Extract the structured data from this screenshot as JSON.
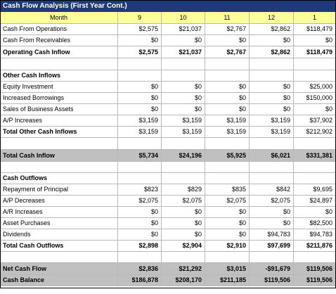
{
  "title": "Cash Flow Analysis (First Year Cont.)",
  "header": [
    "Month",
    "9",
    "10",
    "11",
    "12",
    "1"
  ],
  "rows": [
    [
      "Cash From Operations",
      "$2,575",
      "$21,037",
      "$2,767",
      "$2,862",
      "$118,479"
    ],
    [
      "Cash From Receivables",
      "$0",
      "$0",
      "$0",
      "$0",
      "$0"
    ],
    [
      "Operating Cash Inflow",
      "$2,575",
      "$21,037",
      "$2,767",
      "$2,862",
      "$118,479"
    ],
    [
      "Other Cash Inflows"
    ],
    [
      "Equity Investment",
      "$0",
      "$0",
      "$0",
      "$0",
      "$25,000"
    ],
    [
      "Increased Borrowings",
      "$0",
      "$0",
      "$0",
      "$0",
      "$150,000"
    ],
    [
      "Sales of Business Assets",
      "$0",
      "$0",
      "$0",
      "$0",
      "$0"
    ],
    [
      "A/P Increases",
      "$3,159",
      "$3,159",
      "$3,159",
      "$3,159",
      "$37,902"
    ],
    [
      "Total Other Cash Inflows",
      "$3,159",
      "$3,159",
      "$3,159",
      "$3,159",
      "$212,902"
    ],
    [
      "Total Cash Inflow",
      "$5,734",
      "$24,196",
      "$5,925",
      "$6,021",
      "$331,381"
    ],
    [
      "Cash Outflows"
    ],
    [
      "Repayment of Principal",
      "$823",
      "$829",
      "$835",
      "$842",
      "$9,695"
    ],
    [
      "A/P Decreases",
      "$2,075",
      "$2,075",
      "$2,075",
      "$2,075",
      "$24,897"
    ],
    [
      "A/R Increases",
      "$0",
      "$0",
      "$0",
      "$0",
      "$0"
    ],
    [
      "Asset Purchases",
      "$0",
      "$0",
      "$0",
      "$0",
      "$82,500"
    ],
    [
      "Dividends",
      "$0",
      "$0",
      "$0",
      "$94,783",
      "$94,783"
    ],
    [
      "Total Cash Outflows",
      "$2,898",
      "$2,904",
      "$2,910",
      "$97,699",
      "$211,876"
    ],
    [
      "Net Cash Flow",
      "$2,836",
      "$21,292",
      "$3,015",
      "-$91,679",
      "$119,506"
    ],
    [
      "Cash Balance",
      "$186,878",
      "$208,170",
      "$211,185",
      "$119,506",
      "$119,506"
    ]
  ]
}
